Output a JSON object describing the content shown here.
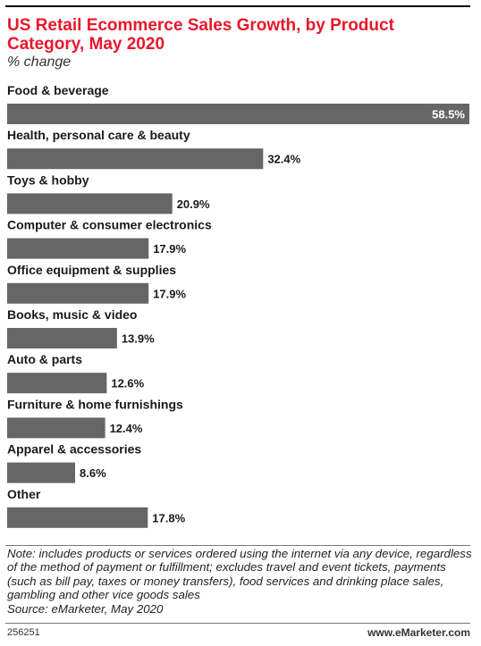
{
  "chart_data": {
    "type": "bar",
    "orientation": "horizontal",
    "title": "US Retail Ecommerce Sales Growth, by Product Category, May 2020",
    "subtitle": "% change",
    "categories": [
      "Food & beverage",
      "Health, personal care & beauty",
      "Toys & hobby",
      "Computer & consumer electronics",
      "Office equipment & supplies",
      "Books, music & video",
      "Auto & parts",
      "Furniture & home furnishings",
      "Apparel & accessories",
      "Other"
    ],
    "values": [
      58.5,
      32.4,
      20.9,
      17.9,
      17.9,
      13.9,
      12.6,
      12.4,
      8.6,
      17.8
    ],
    "value_labels": [
      "58.5%",
      "32.4%",
      "20.9%",
      "17.9%",
      "17.9%",
      "13.9%",
      "12.6%",
      "12.4%",
      "8.6%",
      "17.8%"
    ],
    "xlim": [
      0,
      58.5
    ],
    "grid": false,
    "colors": {
      "title": "#e8172c",
      "bar": "#666666",
      "label_inside": "#ffffff",
      "label_outside": "#1a1a1a"
    }
  },
  "note": "Note: includes products or services ordered using the internet via any device, regardless of the method of payment or fulfillment; excludes travel and event tickets, payments (such as bill pay, taxes or money transfers), food services and drinking place sales, gambling and other vice goods sales",
  "source": "Source: eMarketer, May 2020",
  "chart_id": "256251",
  "brand": "www.eMarketer.com"
}
